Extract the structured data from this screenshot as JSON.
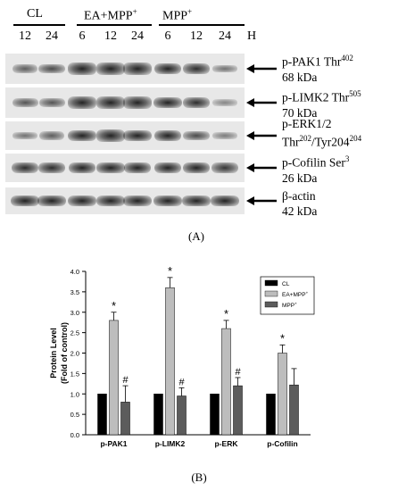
{
  "panel_a": {
    "groups": [
      "CL",
      "EA+MPP",
      "MPP"
    ],
    "plus_sup": "+",
    "timepoints": [
      "12",
      "24",
      "6",
      "12",
      "24",
      "6",
      "12",
      "24"
    ],
    "unit": "H",
    "labels": [
      {
        "line1": "p-PAK1 Thr",
        "sup1": "402",
        "line2": "68 kDa"
      },
      {
        "line1": "p-LIMK2 Thr",
        "sup1": "505",
        "line2": "70 kDa"
      },
      {
        "line1": "p-ERK1/2",
        "sup1": "",
        "line2a": "Thr",
        "sup2a": "202",
        "line2b": "/Tyr204",
        "sup2b": "204"
      },
      {
        "line1": "p-Cofilin Ser",
        "sup1": "3",
        "line2": "26 kDa"
      },
      {
        "line1": "β-actin",
        "sup1": "",
        "line2": "42 kDa"
      }
    ],
    "band_intensity": [
      [
        0.45,
        0.55,
        0.9,
        0.95,
        0.95,
        0.75,
        0.7,
        0.35
      ],
      [
        0.5,
        0.5,
        0.95,
        0.95,
        0.95,
        0.85,
        0.7,
        0.25
      ],
      [
        0.35,
        0.45,
        0.85,
        0.9,
        0.85,
        0.8,
        0.55,
        0.3
      ],
      [
        0.7,
        0.7,
        0.8,
        0.85,
        0.8,
        0.8,
        0.8,
        0.65
      ],
      [
        0.85,
        0.85,
        0.85,
        0.85,
        0.85,
        0.85,
        0.85,
        0.85
      ]
    ],
    "panel_label": "(A)"
  },
  "chart_data": {
    "type": "bar",
    "categories": [
      "p-PAK1",
      "p-LIMK2",
      "p-ERK",
      "p-Cofilin"
    ],
    "series": [
      {
        "name": "CL",
        "values": [
          1.0,
          1.0,
          1.0,
          1.0
        ],
        "errors": [
          0,
          0,
          0,
          0
        ],
        "color": "#000000",
        "marks": [
          "",
          "",
          "",
          ""
        ]
      },
      {
        "name": "EA+MPP",
        "sup": "+",
        "values": [
          2.8,
          3.6,
          2.6,
          2.0
        ],
        "errors": [
          0.2,
          0.25,
          0.2,
          0.2
        ],
        "color": "#bdbdbd",
        "marks": [
          "*",
          "*",
          "*",
          "*"
        ]
      },
      {
        "name": "MPP",
        "sup": "+",
        "values": [
          0.8,
          0.95,
          1.2,
          1.22
        ],
        "errors": [
          0.4,
          0.2,
          0.2,
          0.4
        ],
        "color": "#5c5c5c",
        "marks": [
          "#",
          "#",
          "#",
          ""
        ]
      }
    ],
    "ylabel": "Protein Level",
    "ylabel2": "(Fold of control)",
    "ylim": [
      0,
      4.0
    ],
    "yticks": [
      "0.0",
      "0.5",
      "1.0",
      "1.5",
      "2.0",
      "2.5",
      "3.0",
      "3.5",
      "4.0"
    ],
    "legend_position": "top-right",
    "grid": false
  },
  "panel_b_label": "(B)"
}
